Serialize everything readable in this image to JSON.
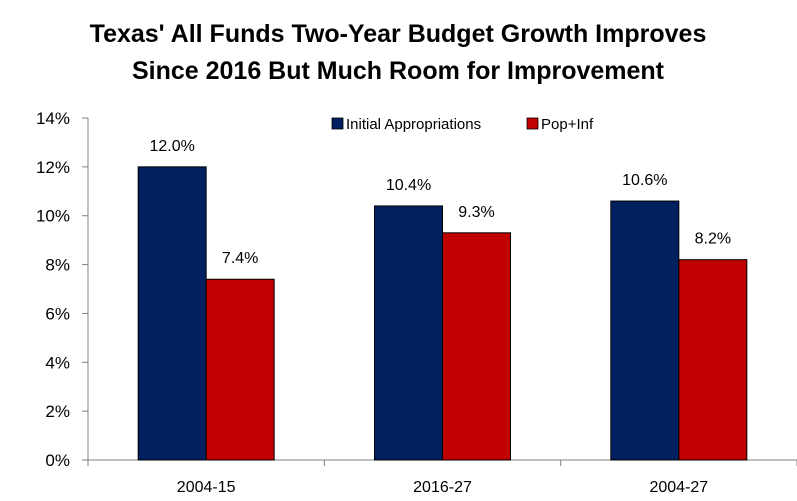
{
  "chart_data": {
    "type": "bar",
    "title_lines": [
      "Texas' All Funds Two-Year Budget Growth Improves",
      "Since 2016 But Much Room for Improvement"
    ],
    "categories": [
      "2004-15",
      "2016-27",
      "2004-27"
    ],
    "series": [
      {
        "name": "Initial Appropriations",
        "color": "#002060",
        "values": [
          12.0,
          10.4,
          10.6
        ],
        "labels": [
          "12.0%",
          "10.4%",
          "10.6%"
        ]
      },
      {
        "name": "Pop+Inf",
        "color": "#C00000",
        "values": [
          7.4,
          9.3,
          8.2
        ],
        "labels": [
          "7.4%",
          "9.3%",
          "8.2%"
        ]
      }
    ],
    "ylim": [
      0,
      14
    ],
    "yticks": [
      0,
      2,
      4,
      6,
      8,
      10,
      12,
      14
    ],
    "ytick_labels": [
      "0%",
      "2%",
      "4%",
      "6%",
      "8%",
      "10%",
      "12%",
      "14%"
    ],
    "xlabel": "",
    "ylabel": "",
    "grid": false,
    "legend_position": "top"
  }
}
